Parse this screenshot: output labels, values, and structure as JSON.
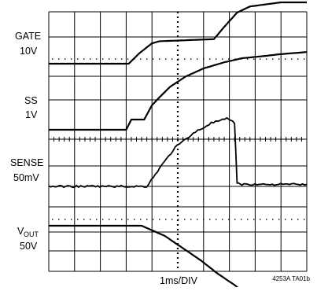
{
  "chart_data": {
    "type": "line",
    "title": "",
    "xlabel": "1ms/DIV",
    "figure_id": "4253A TA01b",
    "x_divisions": 10,
    "x_range_ms": [
      0,
      10
    ],
    "grid": true,
    "channels": [
      {
        "name": "GATE",
        "label_line1": "GATE",
        "label_line2": "10V",
        "x_ms": [
          0,
          3.1,
          3.5,
          4.0,
          4.3,
          6.4,
          6.8,
          7.3,
          7.8,
          8.4,
          9.0,
          10.0
        ],
        "y_div": [
          0,
          0,
          0.5,
          1.0,
          1.1,
          1.2,
          1.8,
          2.5,
          2.8,
          2.9,
          3.0,
          3.0
        ]
      },
      {
        "name": "SS",
        "label_line1": "SS",
        "label_line2": "1V",
        "x_ms": [
          0,
          3.0,
          3.2,
          3.7,
          4.0,
          4.3,
          4.7,
          5.3,
          6.0,
          6.8,
          7.5,
          8.3,
          9.0,
          10.0
        ],
        "y_div": [
          0,
          0,
          0.5,
          0.5,
          1.2,
          1.6,
          2.1,
          2.6,
          3.0,
          3.3,
          3.5,
          3.6,
          3.7,
          3.8
        ]
      },
      {
        "name": "SENSE",
        "label_line1": "SENSE",
        "label_line2": "50mV",
        "x_ms": [
          0,
          3.8,
          4.3,
          4.9,
          5.6,
          6.3,
          6.9,
          7.2,
          7.3,
          7.4,
          10.0
        ],
        "y_div": [
          0,
          0,
          0.9,
          1.9,
          2.6,
          3.1,
          3.3,
          3.1,
          0.2,
          0.1,
          0.1
        ]
      },
      {
        "name": "VOUT",
        "label_line1": "V",
        "label_line1_sub": "OUT",
        "label_line2": "50V",
        "x_ms": [
          0,
          3.6,
          4.5,
          5.2,
          5.9,
          6.5,
          7.2,
          7.6,
          10.0
        ],
        "y_div": [
          0,
          0,
          -0.5,
          -1.1,
          -1.7,
          -2.3,
          -2.9,
          -3.3,
          -3.3
        ]
      }
    ]
  }
}
